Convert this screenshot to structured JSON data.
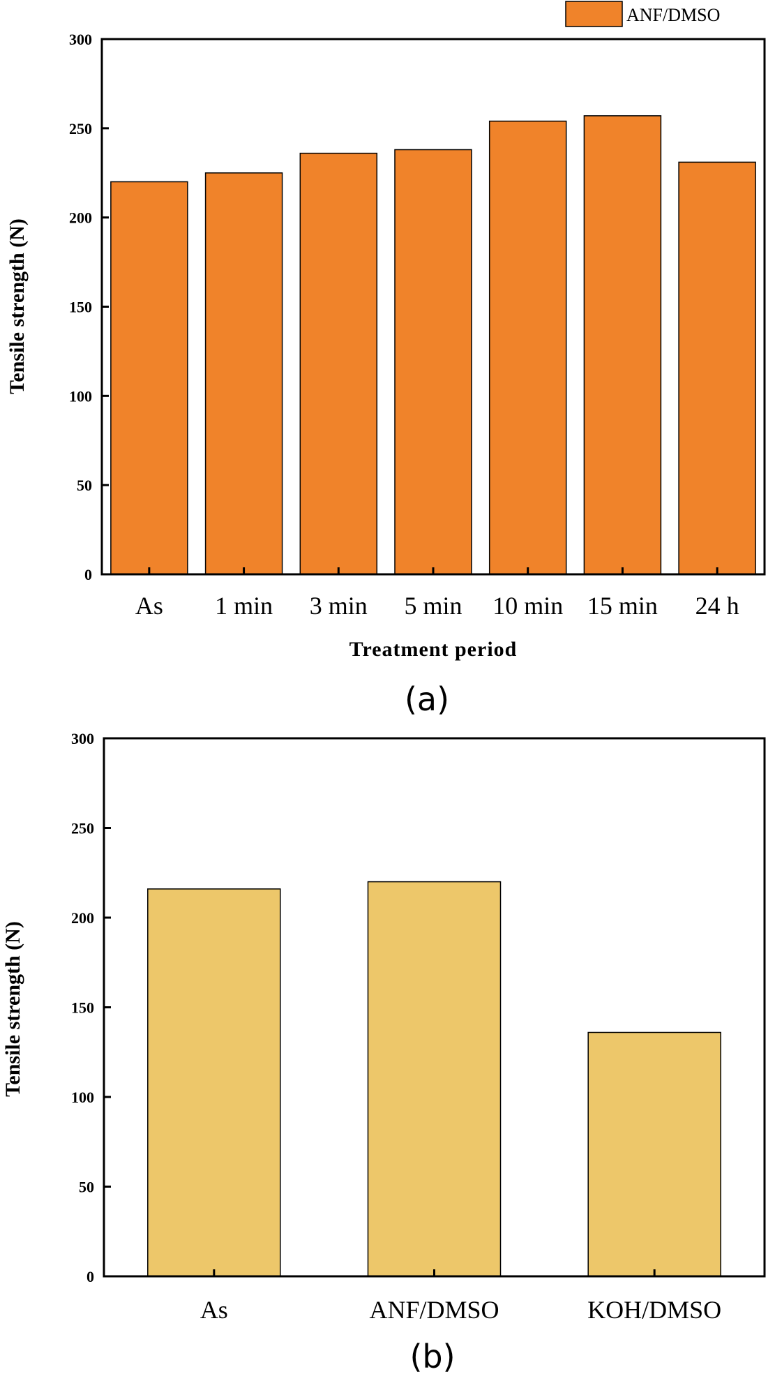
{
  "chart_data": [
    {
      "type": "bar",
      "panel_label": "(a)",
      "categories": [
        "As",
        "1 min",
        "3 min",
        "5 min",
        "10 min",
        "15 min",
        "24 h"
      ],
      "series": [
        {
          "name": "ANF/DMSO",
          "values": [
            220,
            225,
            236,
            238,
            254,
            257,
            231
          ],
          "color": "#F0832A"
        }
      ],
      "xlabel": "Treatment period",
      "ylabel": "Tensile strength (N)",
      "ylim": [
        0,
        300
      ],
      "yticks": [
        0,
        50,
        100,
        150,
        200,
        250,
        300
      ],
      "grid": false,
      "legend": "top-right"
    },
    {
      "type": "bar",
      "panel_label": "(b)",
      "categories": [
        "As",
        "ANF/DMSO",
        "KOH/DMSO"
      ],
      "series": [
        {
          "values": [
            216,
            220,
            136
          ],
          "color": "#EDC76A"
        }
      ],
      "xlabel": "",
      "ylabel": "Tensile strength (N)",
      "ylim": [
        0,
        300
      ],
      "yticks": [
        0,
        50,
        100,
        150,
        200,
        250,
        300
      ],
      "grid": false
    }
  ]
}
